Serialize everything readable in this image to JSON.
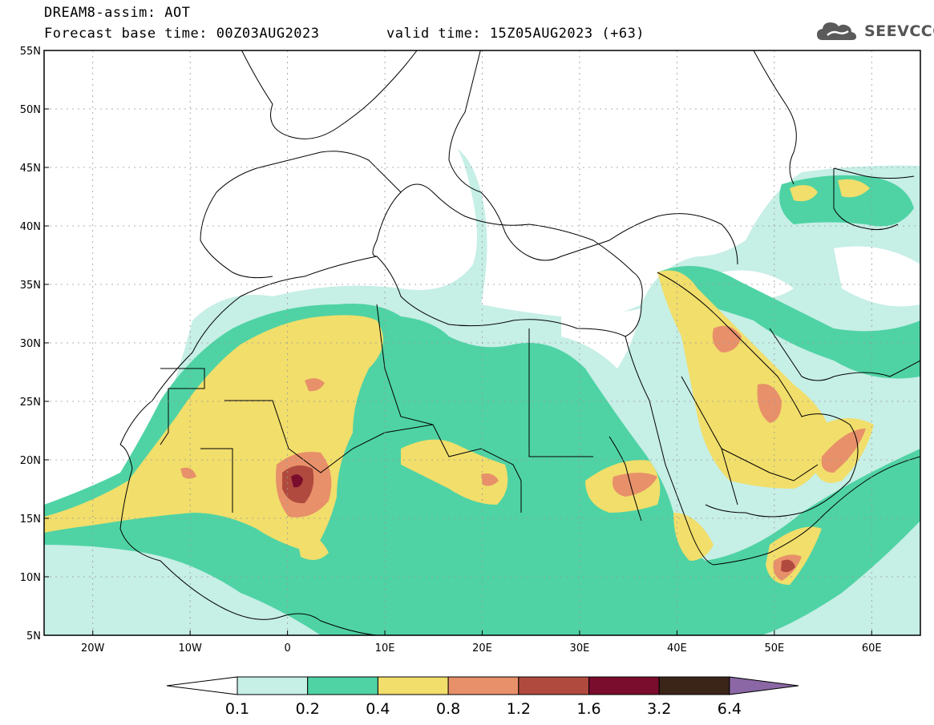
{
  "header": {
    "title": "DREAM8-assim: AOT",
    "base_time": "Forecast base time: 00Z03AUG2023",
    "valid_time": "valid time: 15Z05AUG2023 (+63)"
  },
  "logo": {
    "text": "SEEVCCC",
    "icon": "cloud-icon"
  },
  "map": {
    "lat_labels": [
      "55N",
      "50N",
      "45N",
      "40N",
      "35N",
      "30N",
      "25N",
      "20N",
      "15N",
      "10N",
      "5N"
    ],
    "lat_values": [
      55,
      50,
      45,
      40,
      35,
      30,
      25,
      20,
      15,
      10,
      5
    ],
    "lon_labels": [
      "20W",
      "10W",
      "0",
      "10E",
      "20E",
      "30E",
      "40E",
      "50E",
      "60E"
    ],
    "lon_values": [
      -20,
      -10,
      0,
      10,
      20,
      30,
      40,
      50,
      60
    ],
    "lon_range": [
      -25,
      65
    ],
    "lat_range": [
      5,
      55
    ]
  },
  "colorbar": {
    "labels": [
      "0.1",
      "0.2",
      "0.4",
      "0.8",
      "1.2",
      "1.6",
      "3.2",
      "6.4"
    ],
    "colors": [
      "#ffffff",
      "#c6efe6",
      "#4fd3a4",
      "#f1de6b",
      "#e8906a",
      "#b04a3e",
      "#7a0c2e",
      "#3b2418",
      "#8b68a5"
    ]
  }
}
